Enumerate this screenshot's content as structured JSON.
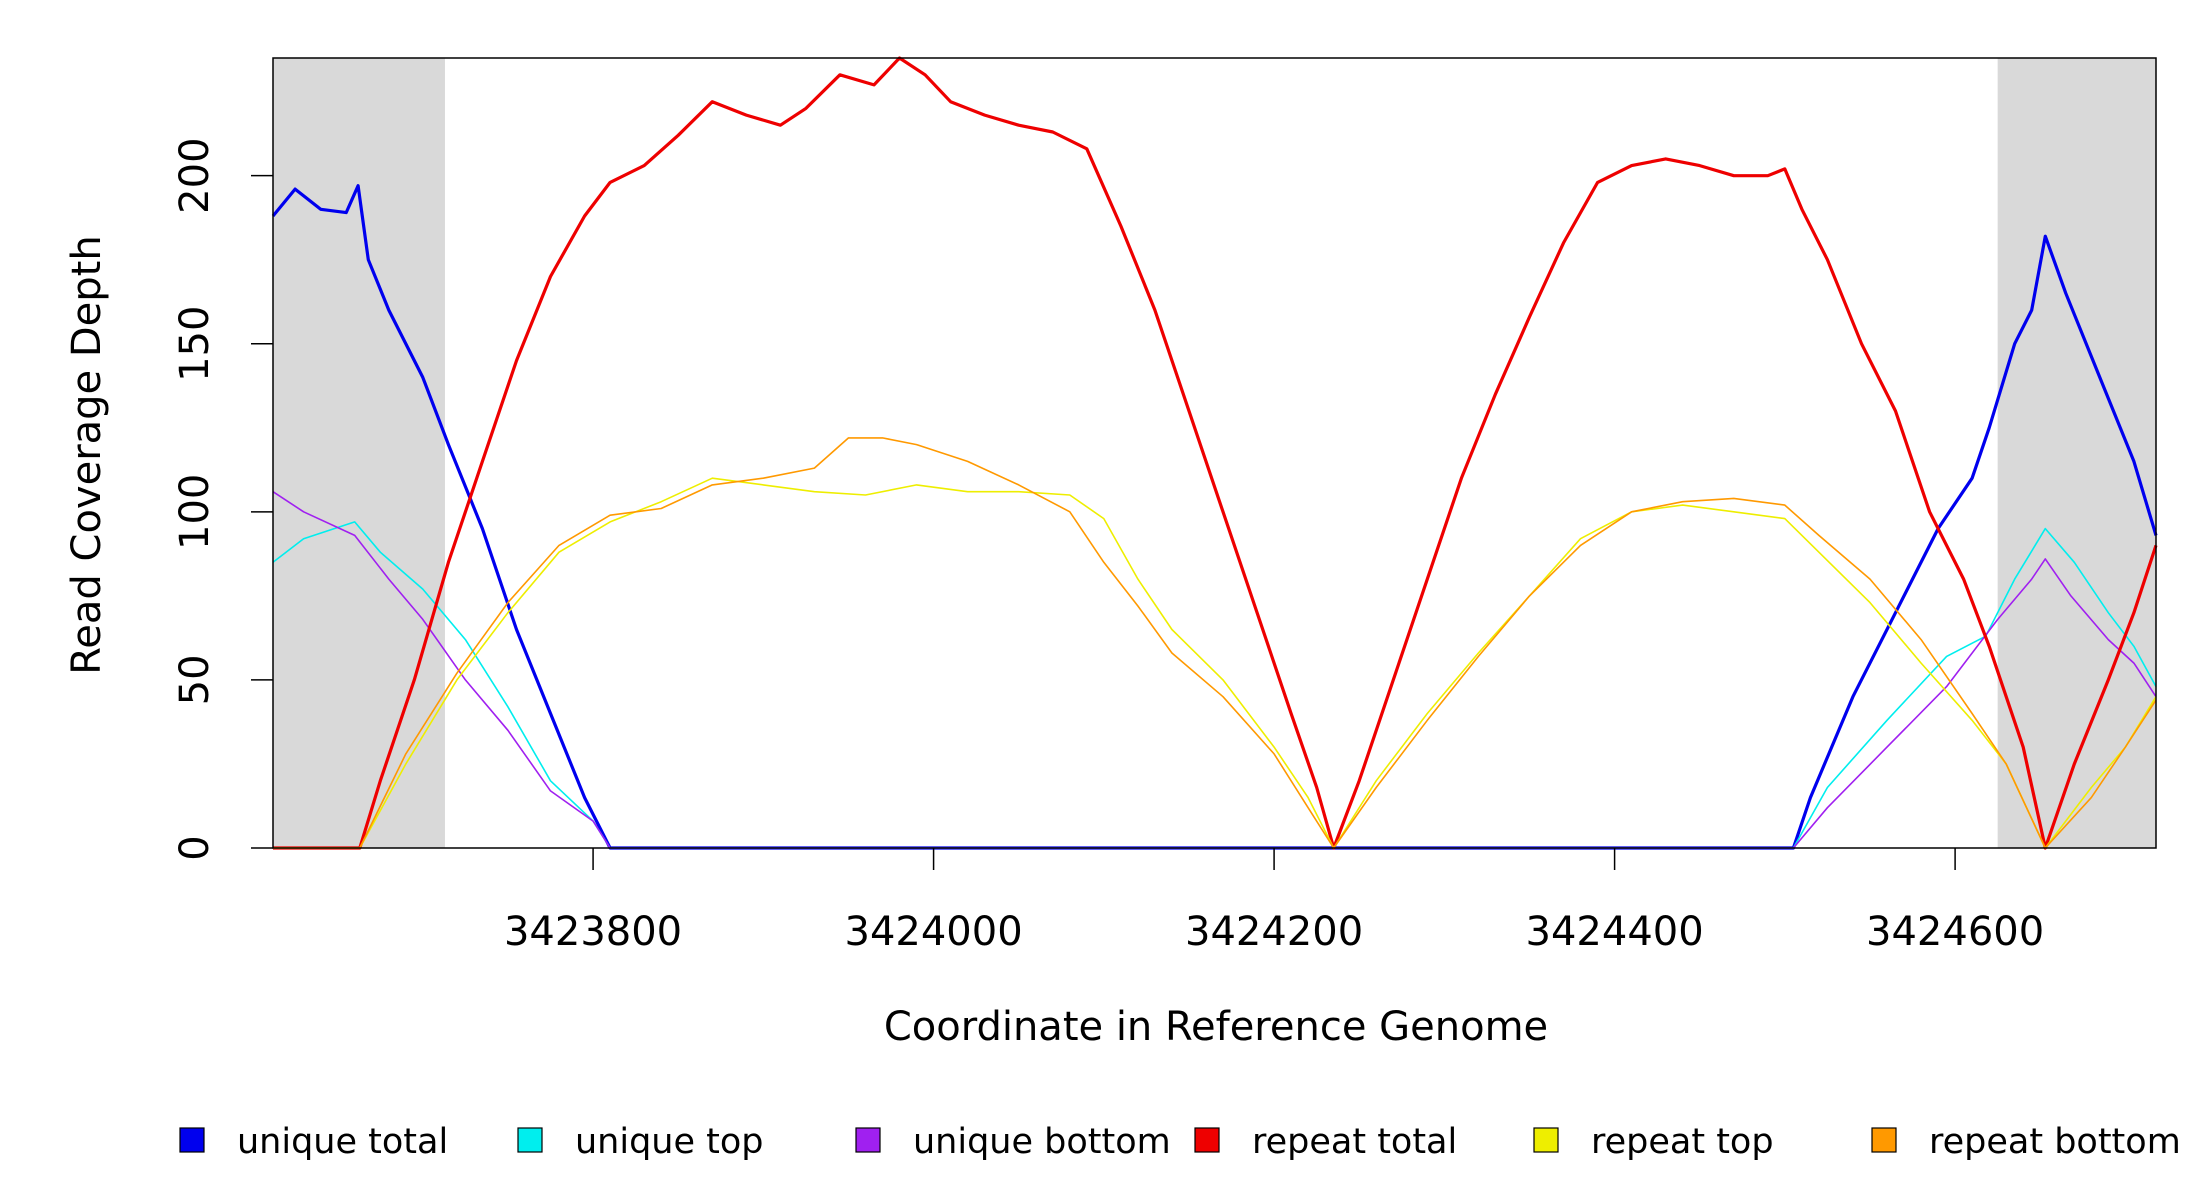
{
  "chart_data": {
    "type": "line",
    "title": "",
    "xlabel": "Coordinate in Reference Genome",
    "ylabel": "Read Coverage Depth",
    "xlim": [
      3423612,
      3424718
    ],
    "ylim": [
      0,
      235
    ],
    "x_ticks": [
      3423800,
      3424000,
      3424200,
      3424400,
      3424600
    ],
    "x_tick_labels": [
      "3423800",
      "3424000",
      "3424200",
      "3424400",
      "3424600"
    ],
    "y_ticks": [
      0,
      50,
      100,
      150,
      200
    ],
    "y_tick_labels": [
      "0",
      "50",
      "100",
      "150",
      "200"
    ],
    "shaded_regions": [
      {
        "from": 3423612,
        "to": 3423713
      },
      {
        "from": 3424625,
        "to": 3424718
      }
    ],
    "legend_position": "bottom",
    "series": [
      {
        "name": "unique total",
        "color": "#0000ee",
        "weight": "bold",
        "points": [
          [
            3423612,
            188
          ],
          [
            3423625,
            196
          ],
          [
            3423640,
            190
          ],
          [
            3423655,
            189
          ],
          [
            3423662,
            197
          ],
          [
            3423668,
            175
          ],
          [
            3423680,
            160
          ],
          [
            3423700,
            140
          ],
          [
            3423715,
            120
          ],
          [
            3423735,
            95
          ],
          [
            3423755,
            65
          ],
          [
            3423775,
            40
          ],
          [
            3423795,
            15
          ],
          [
            3423810,
            0
          ],
          [
            3424505,
            0
          ],
          [
            3424515,
            15
          ],
          [
            3424540,
            45
          ],
          [
            3424565,
            70
          ],
          [
            3424590,
            95
          ],
          [
            3424610,
            110
          ],
          [
            3424620,
            125
          ],
          [
            3424635,
            150
          ],
          [
            3424645,
            160
          ],
          [
            3424653,
            182
          ],
          [
            3424665,
            165
          ],
          [
            3424685,
            140
          ],
          [
            3424705,
            115
          ],
          [
            3424718,
            93
          ]
        ]
      },
      {
        "name": "unique top",
        "color": "#00eeee",
        "weight": "thin",
        "points": [
          [
            3423612,
            85
          ],
          [
            3423630,
            92
          ],
          [
            3423660,
            97
          ],
          [
            3423675,
            88
          ],
          [
            3423700,
            77
          ],
          [
            3423725,
            62
          ],
          [
            3423750,
            42
          ],
          [
            3423775,
            20
          ],
          [
            3423800,
            8
          ],
          [
            3423810,
            0
          ],
          [
            3424505,
            0
          ],
          [
            3424525,
            18
          ],
          [
            3424560,
            38
          ],
          [
            3424595,
            57
          ],
          [
            3424618,
            63
          ],
          [
            3424635,
            80
          ],
          [
            3424653,
            95
          ],
          [
            3424670,
            85
          ],
          [
            3424690,
            70
          ],
          [
            3424705,
            60
          ],
          [
            3424718,
            48
          ]
        ]
      },
      {
        "name": "unique bottom",
        "color": "#a020f0",
        "weight": "thin",
        "points": [
          [
            3423612,
            106
          ],
          [
            3423630,
            100
          ],
          [
            3423660,
            93
          ],
          [
            3423680,
            80
          ],
          [
            3423700,
            68
          ],
          [
            3423725,
            50
          ],
          [
            3423750,
            35
          ],
          [
            3423775,
            17
          ],
          [
            3423800,
            8
          ],
          [
            3423810,
            0
          ],
          [
            3424505,
            0
          ],
          [
            3424525,
            12
          ],
          [
            3424560,
            30
          ],
          [
            3424595,
            48
          ],
          [
            3424625,
            68
          ],
          [
            3424645,
            80
          ],
          [
            3424653,
            86
          ],
          [
            3424668,
            75
          ],
          [
            3424690,
            62
          ],
          [
            3424705,
            55
          ],
          [
            3424718,
            45
          ]
        ]
      },
      {
        "name": "repeat total",
        "color": "#ee0000",
        "weight": "bold",
        "points": [
          [
            3423612,
            0
          ],
          [
            3423663,
            0
          ],
          [
            3423675,
            20
          ],
          [
            3423695,
            50
          ],
          [
            3423715,
            85
          ],
          [
            3423735,
            115
          ],
          [
            3423755,
            145
          ],
          [
            3423775,
            170
          ],
          [
            3423795,
            188
          ],
          [
            3423810,
            198
          ],
          [
            3423830,
            203
          ],
          [
            3423850,
            212
          ],
          [
            3423870,
            222
          ],
          [
            3423890,
            218
          ],
          [
            3423910,
            215
          ],
          [
            3423925,
            220
          ],
          [
            3423945,
            230
          ],
          [
            3423965,
            227
          ],
          [
            3423980,
            235
          ],
          [
            3423995,
            230
          ],
          [
            3424010,
            222
          ],
          [
            3424030,
            218
          ],
          [
            3424050,
            215
          ],
          [
            3424070,
            213
          ],
          [
            3424090,
            208
          ],
          [
            3424110,
            185
          ],
          [
            3424130,
            160
          ],
          [
            3424150,
            130
          ],
          [
            3424170,
            100
          ],
          [
            3424190,
            70
          ],
          [
            3424210,
            40
          ],
          [
            3424225,
            18
          ],
          [
            3424235,
            0
          ],
          [
            3424250,
            20
          ],
          [
            3424270,
            50
          ],
          [
            3424290,
            80
          ],
          [
            3424310,
            110
          ],
          [
            3424330,
            135
          ],
          [
            3424350,
            158
          ],
          [
            3424370,
            180
          ],
          [
            3424390,
            198
          ],
          [
            3424410,
            203
          ],
          [
            3424430,
            205
          ],
          [
            3424450,
            203
          ],
          [
            3424470,
            200
          ],
          [
            3424490,
            200
          ],
          [
            3424500,
            202
          ],
          [
            3424510,
            190
          ],
          [
            3424525,
            175
          ],
          [
            3424545,
            150
          ],
          [
            3424565,
            130
          ],
          [
            3424585,
            100
          ],
          [
            3424605,
            80
          ],
          [
            3424620,
            60
          ],
          [
            3424640,
            30
          ],
          [
            3424653,
            0
          ],
          [
            3424670,
            25
          ],
          [
            3424690,
            50
          ],
          [
            3424705,
            70
          ],
          [
            3424718,
            90
          ]
        ]
      },
      {
        "name": "repeat top",
        "color": "#eeee00",
        "weight": "thin",
        "points": [
          [
            3423612,
            0
          ],
          [
            3423663,
            0
          ],
          [
            3423690,
            25
          ],
          [
            3423720,
            50
          ],
          [
            3423750,
            70
          ],
          [
            3423780,
            88
          ],
          [
            3423810,
            97
          ],
          [
            3423840,
            103
          ],
          [
            3423870,
            110
          ],
          [
            3423900,
            108
          ],
          [
            3423930,
            106
          ],
          [
            3423960,
            105
          ],
          [
            3423990,
            108
          ],
          [
            3424020,
            106
          ],
          [
            3424050,
            106
          ],
          [
            3424080,
            105
          ],
          [
            3424100,
            98
          ],
          [
            3424120,
            80
          ],
          [
            3424140,
            65
          ],
          [
            3424170,
            50
          ],
          [
            3424200,
            30
          ],
          [
            3424220,
            15
          ],
          [
            3424235,
            0
          ],
          [
            3424260,
            20
          ],
          [
            3424290,
            40
          ],
          [
            3424320,
            58
          ],
          [
            3424350,
            75
          ],
          [
            3424380,
            92
          ],
          [
            3424410,
            100
          ],
          [
            3424440,
            102
          ],
          [
            3424470,
            100
          ],
          [
            3424500,
            98
          ],
          [
            3424520,
            88
          ],
          [
            3424550,
            73
          ],
          [
            3424580,
            55
          ],
          [
            3424610,
            38
          ],
          [
            3424630,
            25
          ],
          [
            3424653,
            0
          ],
          [
            3424680,
            18
          ],
          [
            3424700,
            30
          ],
          [
            3424718,
            45
          ]
        ]
      },
      {
        "name": "repeat bottom",
        "color": "#ff9900",
        "weight": "thin",
        "points": [
          [
            3423612,
            0
          ],
          [
            3423663,
            0
          ],
          [
            3423690,
            28
          ],
          [
            3423720,
            52
          ],
          [
            3423750,
            73
          ],
          [
            3423780,
            90
          ],
          [
            3423810,
            99
          ],
          [
            3423840,
            101
          ],
          [
            3423870,
            108
          ],
          [
            3423900,
            110
          ],
          [
            3423930,
            113
          ],
          [
            3423950,
            122
          ],
          [
            3423970,
            122
          ],
          [
            3423990,
            120
          ],
          [
            3424020,
            115
          ],
          [
            3424050,
            108
          ],
          [
            3424080,
            100
          ],
          [
            3424100,
            85
          ],
          [
            3424120,
            72
          ],
          [
            3424140,
            58
          ],
          [
            3424170,
            45
          ],
          [
            3424200,
            28
          ],
          [
            3424220,
            12
          ],
          [
            3424235,
            0
          ],
          [
            3424260,
            18
          ],
          [
            3424290,
            38
          ],
          [
            3424320,
            57
          ],
          [
            3424350,
            75
          ],
          [
            3424380,
            90
          ],
          [
            3424410,
            100
          ],
          [
            3424440,
            103
          ],
          [
            3424470,
            104
          ],
          [
            3424500,
            102
          ],
          [
            3424520,
            93
          ],
          [
            3424550,
            80
          ],
          [
            3424580,
            62
          ],
          [
            3424610,
            40
          ],
          [
            3424630,
            25
          ],
          [
            3424653,
            0
          ],
          [
            3424680,
            15
          ],
          [
            3424700,
            30
          ],
          [
            3424718,
            44
          ]
        ]
      }
    ]
  }
}
